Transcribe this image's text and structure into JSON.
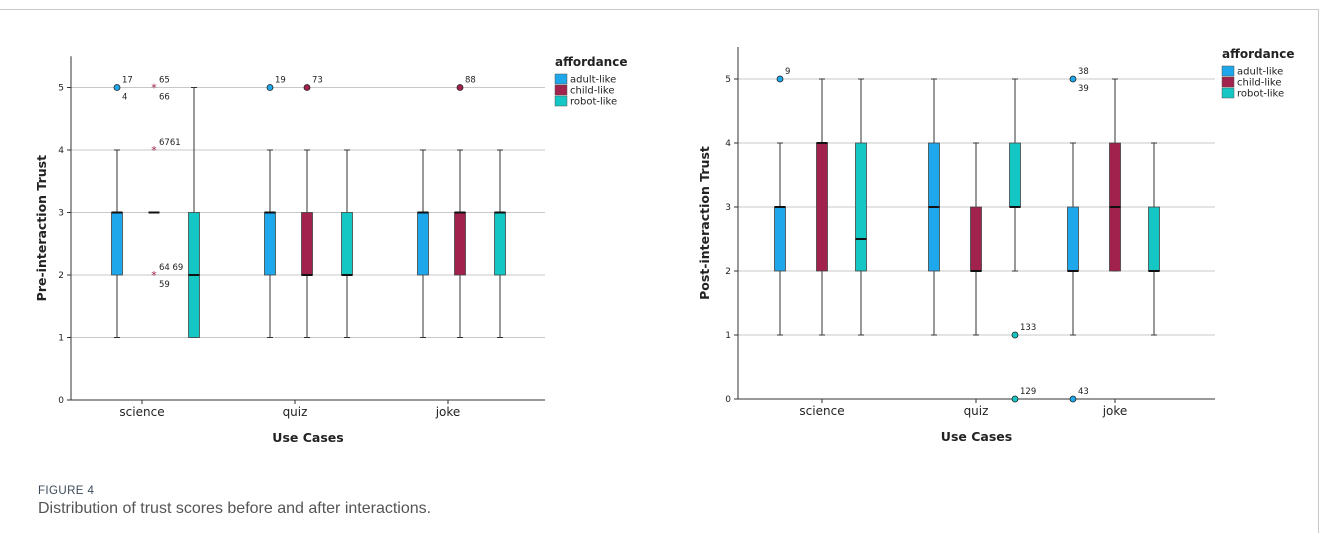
{
  "figure": {
    "label": "FIGURE 4",
    "caption": "Distribution of trust scores before and after interactions."
  },
  "colors": {
    "adult-like": "#1ea7ea",
    "child-like": "#a1224c",
    "robot-like": "#14c7c4"
  },
  "chart_data": [
    {
      "type": "boxplot",
      "ylabel": "Pre-interaction Trust",
      "xlabel": "Use Cases",
      "ylim": [
        0,
        5.5
      ],
      "yticks": [
        0,
        1,
        2,
        3,
        4,
        5
      ],
      "categories": [
        "science",
        "quiz",
        "joke"
      ],
      "legend": {
        "title": "affordance",
        "entries": [
          "adult-like",
          "child-like",
          "robot-like"
        ],
        "placement": "top-right"
      },
      "grid": true,
      "boxes": [
        {
          "category": "science",
          "group": "adult-like",
          "min": 1,
          "q1": 2,
          "median": 3,
          "q3": 3,
          "max": 4
        },
        {
          "category": "science",
          "group": "child-like",
          "min": 3,
          "q1": 3,
          "median": 3,
          "q3": 3,
          "max": 3
        },
        {
          "category": "science",
          "group": "robot-like",
          "min": 1,
          "q1": 1,
          "median": 2,
          "q3": 3,
          "max": 5
        },
        {
          "category": "quiz",
          "group": "adult-like",
          "min": 1,
          "q1": 2,
          "median": 3,
          "q3": 3,
          "max": 4
        },
        {
          "category": "quiz",
          "group": "child-like",
          "min": 1,
          "q1": 2,
          "median": 2,
          "q3": 3,
          "max": 4
        },
        {
          "category": "quiz",
          "group": "robot-like",
          "min": 1,
          "q1": 2,
          "median": 2,
          "q3": 3,
          "max": 4
        },
        {
          "category": "joke",
          "group": "adult-like",
          "min": 1,
          "q1": 2,
          "median": 3,
          "q3": 3,
          "max": 4
        },
        {
          "category": "joke",
          "group": "child-like",
          "min": 1,
          "q1": 2,
          "median": 3,
          "q3": 3,
          "max": 4
        },
        {
          "category": "joke",
          "group": "robot-like",
          "min": 1,
          "q1": 2,
          "median": 3,
          "q3": 3,
          "max": 4
        }
      ],
      "outliers": [
        {
          "category": "science",
          "group": "adult-like",
          "value": 5,
          "marker": "circle",
          "labels": [
            "17",
            "4"
          ]
        },
        {
          "category": "science",
          "group": "child-like",
          "value": 5,
          "marker": "star",
          "labels": [
            "65",
            "66"
          ]
        },
        {
          "category": "science",
          "group": "child-like",
          "value": 4,
          "marker": "star",
          "labels": [
            "6761"
          ]
        },
        {
          "category": "science",
          "group": "child-like",
          "value": 2,
          "marker": "star",
          "labels": [
            "64 69",
            "59"
          ]
        },
        {
          "category": "quiz",
          "group": "adult-like",
          "value": 5,
          "marker": "circle",
          "labels": [
            "19"
          ]
        },
        {
          "category": "quiz",
          "group": "child-like",
          "value": 5,
          "marker": "circle",
          "labels": [
            "73"
          ]
        },
        {
          "category": "joke",
          "group": "child-like",
          "value": 5,
          "marker": "circle",
          "labels": [
            "88"
          ]
        }
      ]
    },
    {
      "type": "boxplot",
      "ylabel": "Post-interaction Trust",
      "xlabel": "Use Cases",
      "ylim": [
        0,
        5.5
      ],
      "yticks": [
        0,
        1,
        2,
        3,
        4,
        5
      ],
      "categories": [
        "science",
        "quiz",
        "joke"
      ],
      "legend": {
        "title": "affordance",
        "entries": [
          "adult-like",
          "child-like",
          "robot-like"
        ],
        "placement": "top-right"
      },
      "grid": true,
      "boxes": [
        {
          "category": "science",
          "group": "adult-like",
          "min": 1,
          "q1": 2,
          "median": 3,
          "q3": 3,
          "max": 4
        },
        {
          "category": "science",
          "group": "child-like",
          "min": 1,
          "q1": 2,
          "median": 4,
          "q3": 4,
          "max": 5
        },
        {
          "category": "science",
          "group": "robot-like",
          "min": 1,
          "q1": 2,
          "median": 2.5,
          "q3": 4,
          "max": 5
        },
        {
          "category": "quiz",
          "group": "adult-like",
          "min": 1,
          "q1": 2,
          "median": 3,
          "q3": 4,
          "max": 5
        },
        {
          "category": "quiz",
          "group": "child-like",
          "min": 1,
          "q1": 2,
          "median": 2,
          "q3": 3,
          "max": 4
        },
        {
          "category": "quiz",
          "group": "robot-like",
          "min": 2,
          "q1": 3,
          "median": 3,
          "q3": 4,
          "max": 5
        },
        {
          "category": "joke",
          "group": "adult-like",
          "min": 1,
          "q1": 2,
          "median": 2,
          "q3": 3,
          "max": 4
        },
        {
          "category": "joke",
          "group": "child-like",
          "min": 2,
          "q1": 2,
          "median": 3,
          "q3": 4,
          "max": 5
        },
        {
          "category": "joke",
          "group": "robot-like",
          "min": 1,
          "q1": 2,
          "median": 2,
          "q3": 3,
          "max": 4
        }
      ],
      "outliers": [
        {
          "category": "science",
          "group": "adult-like",
          "value": 5,
          "marker": "circle",
          "labels": [
            "9"
          ]
        },
        {
          "category": "quiz",
          "group": "robot-like",
          "value": 1,
          "marker": "circle",
          "labels": [
            "133"
          ]
        },
        {
          "category": "quiz",
          "group": "robot-like",
          "value": 0,
          "marker": "circle",
          "labels": [
            "129"
          ]
        },
        {
          "category": "joke",
          "group": "adult-like",
          "value": 5,
          "marker": "circle",
          "labels": [
            "38",
            "39"
          ]
        },
        {
          "category": "joke",
          "group": "adult-like",
          "value": 0,
          "marker": "circle",
          "labels": [
            "43"
          ]
        }
      ]
    }
  ]
}
